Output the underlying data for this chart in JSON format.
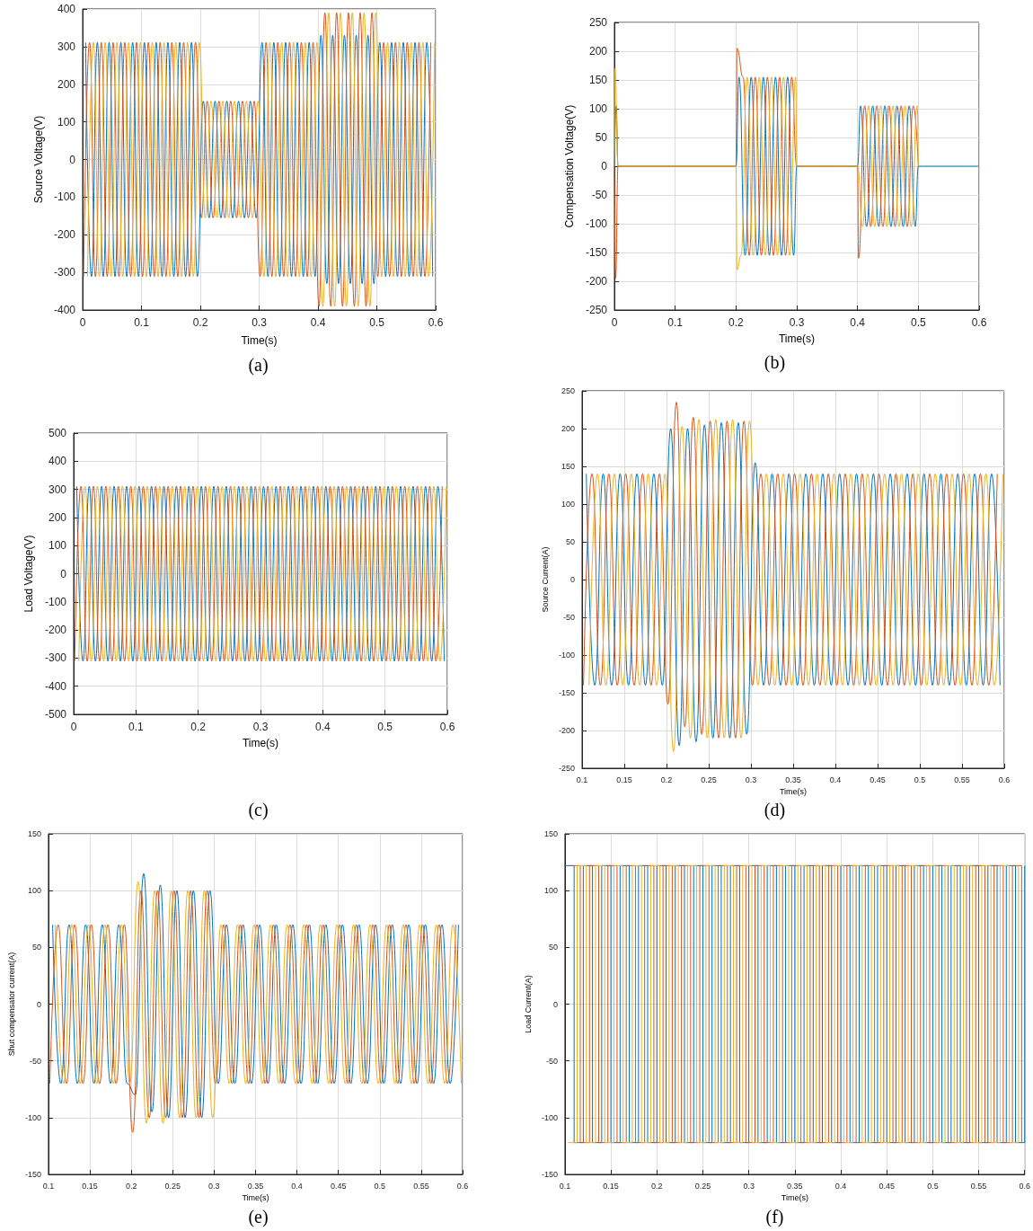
{
  "chart_data": [
    {
      "type": "line",
      "xlabel": "Time(s)",
      "ylabel": "Source Voltage(V)",
      "xlim": [
        0,
        0.6
      ],
      "xticks": [
        0,
        0.1,
        0.2,
        0.3,
        0.4,
        0.5,
        0.6
      ],
      "ylim": [
        -400,
        400
      ],
      "yticks": [
        -400,
        -300,
        -200,
        -100,
        0,
        100,
        200,
        300,
        400
      ],
      "grid": true,
      "annotations": [
        "(a)"
      ],
      "series": [
        {
          "color": "#0072bd",
          "x": [
            0.005,
            0.015,
            0.025,
            0.035,
            0.045,
            0.055,
            0.065,
            0.075,
            0.085,
            0.095,
            0.105,
            0.115,
            0.125,
            0.135,
            0.145,
            0.155,
            0.165,
            0.175,
            0.185,
            0.195,
            0.205,
            0.215,
            0.225,
            0.235,
            0.245,
            0.255,
            0.265,
            0.275,
            0.285,
            0.295,
            0.305,
            0.315,
            0.325,
            0.335,
            0.345,
            0.355,
            0.365,
            0.375,
            0.385,
            0.395,
            0.405,
            0.415,
            0.425,
            0.435,
            0.445,
            0.455,
            0.465,
            0.475,
            0.485,
            0.495,
            0.505,
            0.515,
            0.525,
            0.535,
            0.545,
            0.555,
            0.565,
            0.575,
            0.585,
            0.595
          ],
          "values": [
            311,
            -311,
            311,
            -311,
            311,
            -311,
            311,
            -311,
            311,
            -311,
            311,
            -311,
            311,
            -311,
            311,
            -311,
            311,
            -311,
            311,
            -311,
            155,
            -155,
            155,
            -155,
            155,
            -155,
            155,
            -155,
            155,
            -155,
            311,
            -311,
            311,
            -311,
            311,
            -311,
            311,
            -311,
            311,
            -311,
            330,
            -330,
            330,
            -330,
            330,
            -330,
            330,
            -330,
            330,
            -330,
            311,
            -311,
            311,
            -311,
            311,
            -311,
            311,
            -311,
            311,
            -311
          ]
        },
        {
          "color": "#d95319",
          "x": [
            0.0017,
            0.0117,
            0.0217,
            0.0317,
            0.0417,
            0.0517,
            0.0617,
            0.0717,
            0.0817,
            0.0917,
            0.1017,
            0.1117,
            0.1217,
            0.1317,
            0.1417,
            0.1517,
            0.1617,
            0.1717,
            0.1817,
            0.1917,
            0.2017,
            0.2117,
            0.2217,
            0.2317,
            0.2417,
            0.2517,
            0.2617,
            0.2717,
            0.2817,
            0.2917,
            0.3017,
            0.3117,
            0.3217,
            0.3317,
            0.3417,
            0.3517,
            0.3617,
            0.3717,
            0.3817,
            0.3917,
            0.4017,
            0.4117,
            0.4217,
            0.4317,
            0.4417,
            0.4517,
            0.4617,
            0.4717,
            0.4817,
            0.4917,
            0.5017,
            0.5117,
            0.5217,
            0.5317,
            0.5417,
            0.5517,
            0.5617,
            0.5717,
            0.5817,
            0.5917
          ],
          "values": [
            -311,
            311,
            -311,
            311,
            -311,
            311,
            -311,
            311,
            -311,
            311,
            -311,
            311,
            -311,
            311,
            -311,
            311,
            -311,
            311,
            -311,
            311,
            -155,
            155,
            -155,
            155,
            -155,
            155,
            -155,
            155,
            -155,
            155,
            -311,
            311,
            -311,
            311,
            -311,
            311,
            -311,
            311,
            -311,
            311,
            -390,
            390,
            -390,
            390,
            -390,
            390,
            -390,
            390,
            -390,
            390,
            -311,
            311,
            -311,
            311,
            -311,
            311,
            -311,
            311,
            -311,
            311
          ]
        },
        {
          "color": "#edb120",
          "x": [
            0.0083,
            0.0183,
            0.0283,
            0.0383,
            0.0483,
            0.0583,
            0.0683,
            0.0783,
            0.0883,
            0.0983,
            0.1083,
            0.1183,
            0.1283,
            0.1383,
            0.1483,
            0.1583,
            0.1683,
            0.1783,
            0.1883,
            0.1983,
            0.2083,
            0.2183,
            0.2283,
            0.2383,
            0.2483,
            0.2583,
            0.2683,
            0.2783,
            0.2883,
            0.2983,
            0.3083,
            0.3183,
            0.3283,
            0.3383,
            0.3483,
            0.3583,
            0.3683,
            0.3783,
            0.3883,
            0.3983,
            0.4083,
            0.4183,
            0.4283,
            0.4383,
            0.4483,
            0.4583,
            0.4683,
            0.4783,
            0.4883,
            0.4983,
            0.5083,
            0.5183,
            0.5283,
            0.5383,
            0.5483,
            0.5583,
            0.5683,
            0.5783,
            0.5883,
            0.5983
          ],
          "values": [
            -311,
            311,
            -311,
            311,
            -311,
            311,
            -311,
            311,
            -311,
            311,
            -311,
            311,
            -311,
            311,
            -311,
            311,
            -311,
            311,
            -311,
            311,
            -155,
            155,
            -155,
            155,
            -155,
            155,
            -155,
            155,
            -155,
            155,
            -311,
            311,
            -311,
            311,
            -311,
            311,
            -311,
            311,
            -311,
            311,
            -390,
            390,
            -390,
            390,
            -390,
            390,
            -390,
            390,
            -390,
            390,
            -311,
            311,
            -311,
            311,
            -311,
            311,
            -311,
            311,
            -311,
            311
          ]
        }
      ]
    },
    {
      "type": "line",
      "xlabel": "Time(s)",
      "ylabel": "Compensation Voltage(V)",
      "xlim": [
        0,
        0.6
      ],
      "xticks": [
        0,
        0.1,
        0.2,
        0.3,
        0.4,
        0.5,
        0.6
      ],
      "ylim": [
        -250,
        250
      ],
      "yticks": [
        -250,
        -200,
        -150,
        -100,
        -50,
        0,
        50,
        100,
        150,
        200,
        250
      ],
      "grid": true,
      "annotations": [
        "(b)"
      ],
      "series": [
        {
          "color": "#0072bd",
          "x": [
            0,
            0.003,
            0.006,
            0.2,
            0.205,
            0.215,
            0.225,
            0.235,
            0.245,
            0.255,
            0.265,
            0.275,
            0.285,
            0.295,
            0.3,
            0.4,
            0.405,
            0.415,
            0.425,
            0.435,
            0.445,
            0.455,
            0.465,
            0.475,
            0.485,
            0.495,
            0.5,
            0.6
          ],
          "values": [
            0,
            105,
            0,
            0,
            155,
            -155,
            155,
            -155,
            155,
            -155,
            155,
            -155,
            155,
            -155,
            0,
            0,
            105,
            -105,
            105,
            -105,
            105,
            -105,
            105,
            -105,
            105,
            -105,
            0,
            0
          ]
        },
        {
          "color": "#d95319",
          "x": [
            0,
            0.002,
            0.006,
            0.2,
            0.2017,
            0.2117,
            0.2217,
            0.2317,
            0.2417,
            0.2517,
            0.2617,
            0.2717,
            0.2817,
            0.2917,
            0.3,
            0.4,
            0.4017,
            0.4117,
            0.4217,
            0.4317,
            0.4417,
            0.4517,
            0.4617,
            0.4717,
            0.4817,
            0.4917,
            0.5
          ],
          "values": [
            0,
            -195,
            0,
            0,
            205,
            155,
            -155,
            155,
            -155,
            155,
            -155,
            155,
            -155,
            155,
            0,
            0,
            -160,
            105,
            -105,
            105,
            -105,
            105,
            -105,
            105,
            -105,
            105,
            0
          ]
        },
        {
          "color": "#edb120",
          "x": [
            0,
            0.001,
            0.006,
            0.2,
            0.2017,
            0.2083,
            0.2183,
            0.2283,
            0.2383,
            0.2483,
            0.2583,
            0.2683,
            0.2783,
            0.2883,
            0.2983,
            0.3,
            0.4,
            0.4083,
            0.4183,
            0.4283,
            0.4383,
            0.4483,
            0.4583,
            0.4683,
            0.4783,
            0.4883,
            0.4983,
            0.5
          ],
          "values": [
            0,
            170,
            0,
            0,
            -180,
            -155,
            155,
            -155,
            155,
            -155,
            155,
            -155,
            155,
            -155,
            155,
            0,
            0,
            -105,
            105,
            -105,
            105,
            -105,
            105,
            -105,
            105,
            -105,
            105,
            0
          ]
        }
      ]
    },
    {
      "type": "line",
      "xlabel": "Time(s)",
      "ylabel": "Load Voltage(V)",
      "xlim": [
        0,
        0.6
      ],
      "xticks": [
        0,
        0.1,
        0.2,
        0.3,
        0.4,
        0.5,
        0.6
      ],
      "ylim": [
        -500,
        500
      ],
      "yticks": [
        -500,
        -400,
        -300,
        -200,
        -100,
        0,
        100,
        200,
        300,
        400,
        500
      ],
      "grid": true,
      "annotations": [
        "(c)"
      ],
      "series": [
        {
          "color": "#0072bd",
          "x": [
            0.005,
            0.015,
            0.025,
            0.035,
            0.045,
            0.055,
            0.065,
            0.075,
            0.085,
            0.095,
            0.105,
            0.115,
            0.125,
            0.135,
            0.145,
            0.155,
            0.165,
            0.175,
            0.185,
            0.195,
            0.205,
            0.215,
            0.225,
            0.235,
            0.245,
            0.255,
            0.265,
            0.275,
            0.285,
            0.295,
            0.305,
            0.315,
            0.325,
            0.335,
            0.345,
            0.355,
            0.365,
            0.375,
            0.385,
            0.395,
            0.405,
            0.415,
            0.425,
            0.435,
            0.445,
            0.455,
            0.465,
            0.475,
            0.485,
            0.495,
            0.505,
            0.515,
            0.525,
            0.535,
            0.545,
            0.555,
            0.565,
            0.575,
            0.585,
            0.595
          ],
          "values": [
            311,
            -311,
            311,
            -311,
            311,
            -311,
            311,
            -311,
            311,
            -311,
            311,
            -311,
            311,
            -311,
            311,
            -311,
            311,
            -311,
            311,
            -311,
            311,
            -311,
            311,
            -311,
            311,
            -311,
            311,
            -311,
            311,
            -311,
            311,
            -311,
            311,
            -311,
            311,
            -311,
            311,
            -311,
            311,
            -311,
            311,
            -311,
            311,
            -311,
            311,
            -311,
            311,
            -311,
            311,
            -311,
            311,
            -311,
            311,
            -311,
            311,
            -311,
            311,
            -311,
            311,
            -311
          ]
        },
        {
          "color": "#d95319",
          "x": [
            0.0017,
            0.0117,
            0.0217,
            0.0317,
            0.0417,
            0.0517,
            0.0617,
            0.0717,
            0.0817,
            0.0917,
            0.1017,
            0.1117,
            0.1217,
            0.1317,
            0.1417,
            0.1517,
            0.1617,
            0.1717,
            0.1817,
            0.1917,
            0.2017,
            0.2117,
            0.2217,
            0.2317,
            0.2417,
            0.2517,
            0.2617,
            0.2717,
            0.2817,
            0.2917,
            0.3017,
            0.3117,
            0.3217,
            0.3317,
            0.3417,
            0.3517,
            0.3617,
            0.3717,
            0.3817,
            0.3917,
            0.4017,
            0.4117,
            0.4217,
            0.4317,
            0.4417,
            0.4517,
            0.4617,
            0.4717,
            0.4817,
            0.4917,
            0.5017,
            0.5117,
            0.5217,
            0.5317,
            0.5417,
            0.5517,
            0.5617,
            0.5717,
            0.5817,
            0.5917
          ],
          "values": [
            -311,
            311,
            -311,
            311,
            -311,
            311,
            -311,
            311,
            -311,
            311,
            -311,
            311,
            -311,
            311,
            -311,
            311,
            -311,
            311,
            -311,
            311,
            -311,
            311,
            -311,
            311,
            -311,
            311,
            -311,
            311,
            -311,
            311,
            -311,
            311,
            -311,
            311,
            -311,
            311,
            -311,
            311,
            -311,
            311,
            -311,
            311,
            -311,
            311,
            -311,
            311,
            -311,
            311,
            -311,
            311,
            -311,
            311,
            -311,
            311,
            -311,
            311,
            -311,
            311,
            -311,
            311
          ]
        },
        {
          "color": "#edb120",
          "x": [
            0.0083,
            0.0183,
            0.0283,
            0.0383,
            0.0483,
            0.0583,
            0.0683,
            0.0783,
            0.0883,
            0.0983,
            0.1083,
            0.1183,
            0.1283,
            0.1383,
            0.1483,
            0.1583,
            0.1683,
            0.1783,
            0.1883,
            0.1983,
            0.2083,
            0.2183,
            0.2283,
            0.2383,
            0.2483,
            0.2583,
            0.2683,
            0.2783,
            0.2883,
            0.2983,
            0.3083,
            0.3183,
            0.3283,
            0.3383,
            0.3483,
            0.3583,
            0.3683,
            0.3783,
            0.3883,
            0.3983,
            0.4083,
            0.4183,
            0.4283,
            0.4383,
            0.4483,
            0.4583,
            0.4683,
            0.4783,
            0.4883,
            0.4983,
            0.5083,
            0.5183,
            0.5283,
            0.5383,
            0.5483,
            0.5583,
            0.5683,
            0.5783,
            0.5883,
            0.5983
          ],
          "values": [
            -311,
            311,
            -311,
            311,
            -311,
            311,
            -311,
            311,
            -311,
            311,
            -311,
            311,
            -311,
            311,
            -311,
            311,
            -311,
            311,
            -311,
            311,
            -311,
            311,
            -311,
            311,
            -311,
            311,
            -311,
            311,
            -311,
            311,
            -311,
            311,
            -311,
            311,
            -311,
            311,
            -311,
            311,
            -311,
            311,
            -311,
            311,
            -311,
            311,
            -311,
            311,
            -311,
            311,
            -311,
            311,
            -311,
            311,
            -311,
            311,
            -311,
            311,
            -311,
            311,
            -311,
            311
          ]
        }
      ]
    },
    {
      "type": "line",
      "xlabel": "Time(s)",
      "ylabel": "Source Current(A)",
      "xlim": [
        0.1,
        0.6
      ],
      "xticks": [
        0.1,
        0.15,
        0.2,
        0.25,
        0.3,
        0.35,
        0.4,
        0.45,
        0.5,
        0.55,
        0.6
      ],
      "ylim": [
        -250,
        250
      ],
      "yticks": [
        -250,
        -200,
        -150,
        -100,
        -50,
        0,
        50,
        100,
        150,
        200,
        250
      ],
      "grid": true,
      "annotations": [
        "(d)"
      ],
      "series": [
        {
          "color": "#0072bd",
          "x": [
            0.105,
            0.115,
            0.125,
            0.135,
            0.145,
            0.155,
            0.165,
            0.175,
            0.185,
            0.195,
            0.205,
            0.215,
            0.225,
            0.235,
            0.245,
            0.255,
            0.265,
            0.275,
            0.285,
            0.295,
            0.305,
            0.315,
            0.325,
            0.335,
            0.345,
            0.355,
            0.365,
            0.375,
            0.385,
            0.395,
            0.405,
            0.415,
            0.425,
            0.435,
            0.445,
            0.455,
            0.465,
            0.475,
            0.485,
            0.495,
            0.505,
            0.515,
            0.525,
            0.535,
            0.545,
            0.555,
            0.565,
            0.575,
            0.585,
            0.595
          ],
          "values": [
            140,
            -140,
            140,
            -140,
            140,
            -140,
            140,
            -140,
            140,
            -140,
            200,
            -220,
            200,
            -215,
            205,
            -210,
            208,
            -210,
            208,
            -205,
            155,
            -140,
            140,
            -140,
            140,
            -140,
            140,
            -140,
            140,
            -140,
            140,
            -140,
            140,
            -140,
            140,
            -140,
            140,
            -140,
            140,
            -140,
            140,
            -140,
            140,
            -140,
            140,
            -140,
            140,
            -140,
            140,
            -140
          ]
        },
        {
          "color": "#d95319",
          "x": [
            0.1017,
            0.1117,
            0.1217,
            0.1317,
            0.1417,
            0.1517,
            0.1617,
            0.1717,
            0.1817,
            0.1917,
            0.2017,
            0.2117,
            0.2217,
            0.2317,
            0.2417,
            0.2517,
            0.2617,
            0.2717,
            0.2817,
            0.2917,
            0.3017,
            0.3117,
            0.3217,
            0.3317,
            0.3417,
            0.3517,
            0.3617,
            0.3717,
            0.3817,
            0.3917,
            0.4017,
            0.4117,
            0.4217,
            0.4317,
            0.4417,
            0.4517,
            0.4617,
            0.4717,
            0.4817,
            0.4917,
            0.5017,
            0.5117,
            0.5217,
            0.5317,
            0.5417,
            0.5517,
            0.5617,
            0.5717,
            0.5817,
            0.5917
          ],
          "values": [
            -140,
            140,
            -140,
            140,
            -140,
            140,
            -140,
            140,
            -140,
            140,
            -165,
            235,
            -195,
            215,
            -205,
            210,
            -210,
            210,
            -210,
            210,
            -140,
            140,
            -140,
            140,
            -140,
            140,
            -140,
            140,
            -140,
            140,
            -140,
            140,
            -140,
            140,
            -140,
            140,
            -140,
            140,
            -140,
            140,
            -140,
            140,
            -140,
            140,
            -140,
            140,
            -140,
            140,
            -140,
            140
          ]
        },
        {
          "color": "#edb120",
          "x": [
            0.1083,
            0.1183,
            0.1283,
            0.1383,
            0.1483,
            0.1583,
            0.1683,
            0.1783,
            0.1883,
            0.1983,
            0.2083,
            0.2183,
            0.2283,
            0.2383,
            0.2483,
            0.2583,
            0.2683,
            0.2783,
            0.2883,
            0.2983,
            0.3083,
            0.3183,
            0.3283,
            0.3383,
            0.3483,
            0.3583,
            0.3683,
            0.3783,
            0.3883,
            0.3983,
            0.4083,
            0.4183,
            0.4283,
            0.4383,
            0.4483,
            0.4583,
            0.4683,
            0.4783,
            0.4883,
            0.4983,
            0.5083,
            0.5183,
            0.5283,
            0.5383,
            0.5483,
            0.5583,
            0.5683,
            0.5783,
            0.5883,
            0.5983
          ],
          "values": [
            -140,
            140,
            -140,
            140,
            -140,
            140,
            -140,
            140,
            -140,
            140,
            -228,
            203,
            -210,
            212,
            -210,
            212,
            -210,
            212,
            -210,
            210,
            -140,
            140,
            -140,
            140,
            -140,
            140,
            -140,
            140,
            -140,
            140,
            -140,
            140,
            -140,
            140,
            -140,
            140,
            -140,
            140,
            -140,
            140,
            -140,
            140,
            -140,
            140,
            -140,
            140,
            -140,
            140,
            -140,
            140
          ]
        }
      ]
    },
    {
      "type": "line",
      "xlabel": "Time(s)",
      "ylabel": "Shut compensator current(A)",
      "xlim": [
        0.1,
        0.6
      ],
      "xticks": [
        0.1,
        0.15,
        0.2,
        0.25,
        0.3,
        0.35,
        0.4,
        0.45,
        0.5,
        0.55,
        0.6
      ],
      "ylim": [
        -150,
        150
      ],
      "yticks": [
        -150,
        -100,
        -50,
        0,
        50,
        100,
        150
      ],
      "grid": true,
      "annotations": [
        "(e)"
      ],
      "series": [
        {
          "color": "#0072bd",
          "x": [
            0.105,
            0.115,
            0.125,
            0.135,
            0.145,
            0.155,
            0.165,
            0.175,
            0.185,
            0.195,
            0.205,
            0.215,
            0.225,
            0.235,
            0.245,
            0.255,
            0.265,
            0.275,
            0.285,
            0.295,
            0.305,
            0.315,
            0.325,
            0.335,
            0.345,
            0.355,
            0.365,
            0.375,
            0.385,
            0.395,
            0.405,
            0.415,
            0.425,
            0.435,
            0.445,
            0.455,
            0.465,
            0.475,
            0.485,
            0.495,
            0.505,
            0.515,
            0.525,
            0.535,
            0.545,
            0.555,
            0.565,
            0.575,
            0.585,
            0.595
          ],
          "values": [
            70,
            -70,
            70,
            -70,
            70,
            -70,
            70,
            -70,
            70,
            -70,
            -80,
            115,
            -95,
            105,
            -100,
            100,
            -100,
            100,
            -100,
            100,
            -70,
            70,
            -70,
            70,
            -70,
            70,
            -70,
            70,
            -70,
            70,
            -70,
            70,
            -70,
            70,
            -70,
            70,
            -70,
            70,
            -70,
            70,
            -70,
            70,
            -70,
            70,
            -70,
            70,
            -70,
            70,
            -70,
            70
          ]
        },
        {
          "color": "#d95319",
          "x": [
            0.1017,
            0.1117,
            0.1217,
            0.1317,
            0.1417,
            0.1517,
            0.1617,
            0.1717,
            0.1817,
            0.1917,
            0.2017,
            0.2117,
            0.2217,
            0.2317,
            0.2417,
            0.2517,
            0.2617,
            0.2717,
            0.2817,
            0.2917,
            0.3017,
            0.3117,
            0.3217,
            0.3317,
            0.3417,
            0.3517,
            0.3617,
            0.3717,
            0.3817,
            0.3917,
            0.4017,
            0.4117,
            0.4217,
            0.4317,
            0.4417,
            0.4517,
            0.4617,
            0.4717,
            0.4817,
            0.4917,
            0.5017,
            0.5117,
            0.5217,
            0.5317,
            0.5417,
            0.5517,
            0.5617,
            0.5717,
            0.5817,
            0.5917
          ],
          "values": [
            -70,
            70,
            -70,
            70,
            -70,
            70,
            -70,
            70,
            -70,
            70,
            -113,
            100,
            -100,
            100,
            -100,
            100,
            -100,
            100,
            -100,
            100,
            -70,
            70,
            -70,
            70,
            -70,
            70,
            -70,
            70,
            -70,
            70,
            -70,
            70,
            -70,
            70,
            -70,
            70,
            -70,
            70,
            -70,
            70,
            -70,
            70,
            -70,
            70,
            -70,
            70,
            -70,
            70,
            -70,
            70
          ]
        },
        {
          "color": "#edb120",
          "x": [
            0.1083,
            0.1183,
            0.1283,
            0.1383,
            0.1483,
            0.1583,
            0.1683,
            0.1783,
            0.1883,
            0.1983,
            0.2083,
            0.2183,
            0.2283,
            0.2383,
            0.2483,
            0.2583,
            0.2683,
            0.2783,
            0.2883,
            0.2983,
            0.3083,
            0.3183,
            0.3283,
            0.3383,
            0.3483,
            0.3583,
            0.3683,
            0.3783,
            0.3883,
            0.3983,
            0.4083,
            0.4183,
            0.4283,
            0.4383,
            0.4483,
            0.4583,
            0.4683,
            0.4783,
            0.4883,
            0.4983,
            0.5083,
            0.5183,
            0.5283,
            0.5383,
            0.5483,
            0.5583,
            0.5683,
            0.5783,
            0.5883,
            0.5983
          ],
          "values": [
            70,
            -70,
            70,
            -70,
            70,
            -70,
            70,
            -70,
            70,
            -70,
            108,
            -105,
            100,
            -105,
            100,
            -100,
            100,
            -100,
            100,
            -100,
            70,
            -70,
            70,
            -70,
            70,
            -70,
            70,
            -70,
            70,
            -70,
            70,
            -70,
            70,
            -70,
            70,
            -70,
            70,
            -70,
            70,
            -70,
            70,
            -70,
            70,
            -70,
            70,
            -70,
            70,
            -70,
            70,
            -70
          ]
        }
      ]
    },
    {
      "type": "step",
      "xlabel": "Time(s)",
      "ylabel": "Load Current(A)",
      "xlim": [
        0.1,
        0.6
      ],
      "xticks": [
        0.1,
        0.15,
        0.2,
        0.25,
        0.3,
        0.35,
        0.4,
        0.45,
        0.5,
        0.55,
        0.6
      ],
      "ylim": [
        -150,
        150
      ],
      "yticks": [
        -150,
        -100,
        -50,
        0,
        50,
        100,
        150
      ],
      "grid": true,
      "annotations": [
        "(f)"
      ],
      "series": [
        {
          "color": "#0072bd",
          "x": [
            0.1,
            0.11,
            0.12,
            0.13,
            0.14,
            0.15,
            0.16,
            0.17,
            0.18,
            0.19,
            0.2,
            0.21,
            0.22,
            0.23,
            0.24,
            0.25,
            0.26,
            0.27,
            0.28,
            0.29,
            0.3,
            0.31,
            0.32,
            0.33,
            0.34,
            0.35,
            0.36,
            0.37,
            0.38,
            0.39,
            0.4,
            0.41,
            0.42,
            0.43,
            0.44,
            0.45,
            0.46,
            0.47,
            0.48,
            0.49,
            0.5,
            0.51,
            0.52,
            0.53,
            0.54,
            0.55,
            0.56,
            0.57,
            0.58,
            0.59,
            0.6
          ],
          "values": [
            122,
            -122,
            122,
            -122,
            122,
            -122,
            122,
            -122,
            122,
            -122,
            122,
            -122,
            122,
            -122,
            122,
            -122,
            122,
            -122,
            122,
            -122,
            122,
            -122,
            122,
            -122,
            122,
            -122,
            122,
            -122,
            122,
            -122,
            122,
            -122,
            122,
            -122,
            122,
            -122,
            122,
            -122,
            122,
            -122,
            122,
            -122,
            122,
            -122,
            122,
            -122,
            122,
            -122,
            122,
            -122,
            122
          ]
        },
        {
          "color": "#d95319",
          "x": [
            0.1067,
            0.1167,
            0.1267,
            0.1367,
            0.1467,
            0.1567,
            0.1667,
            0.1767,
            0.1867,
            0.1967,
            0.2067,
            0.2167,
            0.2267,
            0.2367,
            0.2467,
            0.2567,
            0.2667,
            0.2767,
            0.2867,
            0.2967,
            0.3067,
            0.3167,
            0.3267,
            0.3367,
            0.3467,
            0.3567,
            0.3667,
            0.3767,
            0.3867,
            0.3967,
            0.4067,
            0.4167,
            0.4267,
            0.4367,
            0.4467,
            0.4567,
            0.4667,
            0.4767,
            0.4867,
            0.4967,
            0.5067,
            0.5167,
            0.5267,
            0.5367,
            0.5467,
            0.5567,
            0.5667,
            0.5767,
            0.5867,
            0.5967
          ],
          "values": [
            122,
            -122,
            122,
            -122,
            122,
            -122,
            122,
            -122,
            122,
            -122,
            122,
            -122,
            122,
            -122,
            122,
            -122,
            122,
            -122,
            122,
            -122,
            122,
            -122,
            122,
            -122,
            122,
            -122,
            122,
            -122,
            122,
            -122,
            122,
            -122,
            122,
            -122,
            122,
            -122,
            122,
            -122,
            122,
            -122,
            122,
            -122,
            122,
            -122,
            122,
            -122,
            122,
            -122,
            122,
            -122
          ]
        },
        {
          "color": "#edb120",
          "x": [
            0.1033,
            0.1133,
            0.1233,
            0.1333,
            0.1433,
            0.1533,
            0.1633,
            0.1733,
            0.1833,
            0.1933,
            0.2033,
            0.2133,
            0.2233,
            0.2333,
            0.2433,
            0.2533,
            0.2633,
            0.2733,
            0.2833,
            0.2933,
            0.3033,
            0.3133,
            0.3233,
            0.3333,
            0.3433,
            0.3533,
            0.3633,
            0.3733,
            0.3833,
            0.3933,
            0.4033,
            0.4133,
            0.4233,
            0.4333,
            0.4433,
            0.4533,
            0.4633,
            0.4733,
            0.4833,
            0.4933,
            0.5033,
            0.5133,
            0.5233,
            0.5333,
            0.5433,
            0.5533,
            0.5633,
            0.5733,
            0.5833,
            0.5933
          ],
          "values": [
            -122,
            122,
            -122,
            122,
            -122,
            122,
            -122,
            122,
            -122,
            122,
            -122,
            122,
            -122,
            122,
            -122,
            122,
            -122,
            122,
            -122,
            122,
            -122,
            122,
            -122,
            122,
            -122,
            122,
            -122,
            122,
            -122,
            122,
            -122,
            122,
            -122,
            122,
            -122,
            122,
            -122,
            122,
            -122,
            122,
            -122,
            122,
            -122,
            122,
            -122,
            122,
            -122,
            122,
            -122,
            122
          ]
        }
      ]
    }
  ]
}
